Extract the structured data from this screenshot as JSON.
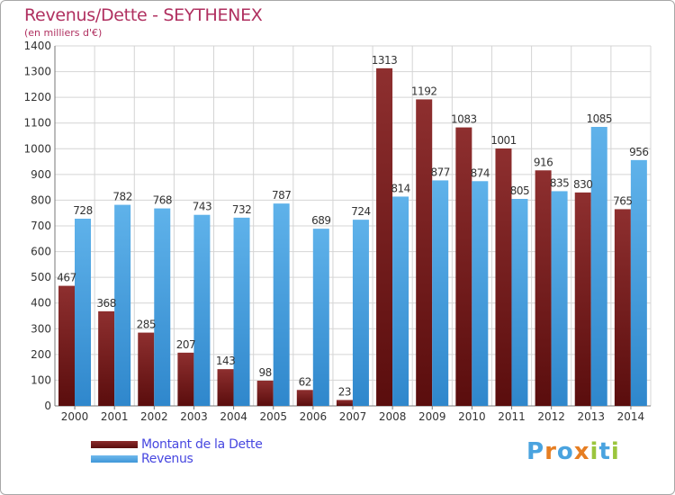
{
  "title": "Revenus/Dette - SEYTHENEX",
  "subtitle": "(en milliers d'€)",
  "legend": {
    "debt_label": "Montant de la Dette",
    "revenue_label": "Revenus"
  },
  "logo": {
    "text": "Proxiti",
    "letters": [
      "P",
      "r",
      "o",
      "x",
      "i",
      "t",
      "i"
    ],
    "colors": [
      "#4aa3df",
      "#e67e22",
      "#4aa3df",
      "#e67e22",
      "#9bc53d",
      "#4aa3df",
      "#9bc53d"
    ]
  },
  "colors": {
    "debt": "#7a1a1a",
    "revenue": "#4aa3df",
    "title": "#b03060",
    "legend_text": "#4747e0"
  },
  "chart_data": {
    "type": "bar",
    "title": "Revenus/Dette - SEYTHENEX",
    "subtitle": "(en milliers d'€)",
    "xlabel": "",
    "ylabel": "",
    "ylim": [
      0,
      1400
    ],
    "yticks": [
      0,
      100,
      200,
      300,
      400,
      500,
      600,
      700,
      800,
      900,
      1000,
      1100,
      1200,
      1300,
      1400
    ],
    "grid": true,
    "legend_position": "bottom-left",
    "categories": [
      "2000",
      "2001",
      "2002",
      "2003",
      "2004",
      "2005",
      "2006",
      "2007",
      "2008",
      "2009",
      "2010",
      "2011",
      "2012",
      "2013",
      "2014"
    ],
    "series": [
      {
        "name": "Montant de la Dette",
        "color": "#7a1a1a",
        "values": [
          467,
          368,
          285,
          207,
          143,
          98,
          62,
          23,
          1313,
          1192,
          1083,
          1001,
          916,
          830,
          765
        ]
      },
      {
        "name": "Revenus",
        "color": "#4aa3df",
        "values": [
          728,
          782,
          768,
          743,
          732,
          787,
          689,
          724,
          814,
          877,
          874,
          805,
          835,
          1085,
          956
        ]
      }
    ]
  }
}
